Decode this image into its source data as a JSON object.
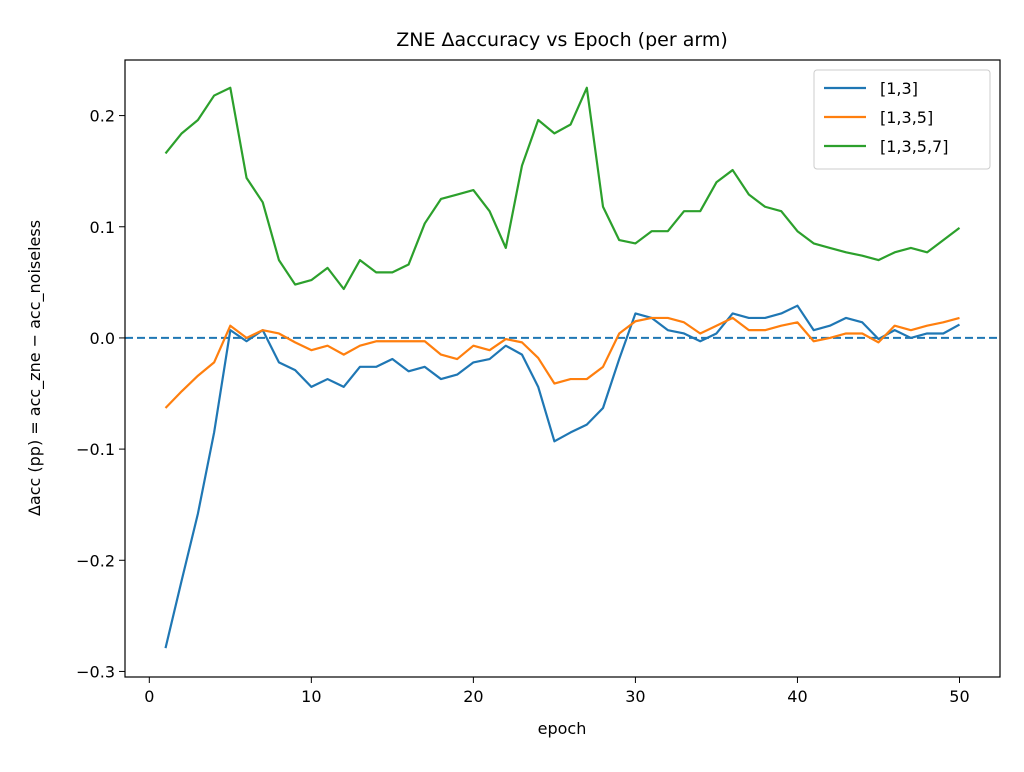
{
  "chart_data": {
    "type": "line",
    "title": "ZNE Δaccuracy vs Epoch (per arm)",
    "xlabel": "epoch",
    "ylabel": "Δacc (pp) = acc_zne − acc_noiseless",
    "xlim": [
      -1.5,
      52.5
    ],
    "ylim": [
      -0.305,
      0.25
    ],
    "xticks": [
      0,
      10,
      20,
      30,
      40,
      50
    ],
    "xtick_labels": [
      "0",
      "10",
      "20",
      "30",
      "40",
      "50"
    ],
    "yticks": [
      -0.3,
      -0.2,
      -0.1,
      0.0,
      0.1,
      0.2
    ],
    "ytick_labels": [
      "−0.3",
      "−0.2",
      "−0.1",
      "0.0",
      "0.1",
      "0.2"
    ],
    "grid": false,
    "legend_position": "top-right",
    "reference_line": {
      "y": 0.0,
      "style": "dashed",
      "color": "#1f77b4"
    },
    "x": [
      1,
      2,
      3,
      4,
      5,
      6,
      7,
      8,
      9,
      10,
      11,
      12,
      13,
      14,
      15,
      16,
      17,
      18,
      19,
      20,
      21,
      22,
      23,
      24,
      25,
      26,
      27,
      28,
      29,
      30,
      31,
      32,
      33,
      34,
      35,
      36,
      37,
      38,
      39,
      40,
      41,
      42,
      43,
      44,
      45,
      46,
      47,
      48,
      49,
      50
    ],
    "series": [
      {
        "name": "[1,3]",
        "color": "#1f77b4",
        "values": [
          -0.279,
          -0.218,
          -0.158,
          -0.085,
          0.007,
          -0.003,
          0.007,
          -0.022,
          -0.029,
          -0.044,
          -0.037,
          -0.044,
          -0.026,
          -0.026,
          -0.019,
          -0.03,
          -0.026,
          -0.037,
          -0.033,
          -0.022,
          -0.019,
          -0.007,
          -0.015,
          -0.044,
          -0.093,
          -0.085,
          -0.078,
          -0.063,
          -0.019,
          0.022,
          0.018,
          0.007,
          0.004,
          -0.003,
          0.004,
          0.022,
          0.018,
          0.018,
          0.022,
          0.029,
          0.007,
          0.011,
          0.018,
          0.014,
          -0.001,
          0.007,
          0.0,
          0.004,
          0.004,
          0.012
        ]
      },
      {
        "name": "[1,3,5]",
        "color": "#ff7f0e",
        "values": [
          -0.063,
          -0.048,
          -0.034,
          -0.022,
          0.011,
          0.0,
          0.007,
          0.004,
          -0.004,
          -0.011,
          -0.007,
          -0.015,
          -0.007,
          -0.003,
          -0.003,
          -0.003,
          -0.003,
          -0.015,
          -0.019,
          -0.007,
          -0.011,
          -0.001,
          -0.004,
          -0.018,
          -0.041,
          -0.037,
          -0.037,
          -0.026,
          0.004,
          0.015,
          0.018,
          0.018,
          0.014,
          0.004,
          0.011,
          0.018,
          0.007,
          0.007,
          0.011,
          0.014,
          -0.003,
          0.0,
          0.004,
          0.004,
          -0.004,
          0.011,
          0.007,
          0.011,
          0.014,
          0.018
        ]
      },
      {
        "name": "[1,3,5,7]",
        "color": "#2ca02c",
        "values": [
          0.166,
          0.184,
          0.196,
          0.218,
          0.225,
          0.144,
          0.122,
          0.07,
          0.048,
          0.052,
          0.063,
          0.044,
          0.07,
          0.059,
          0.059,
          0.066,
          0.103,
          0.125,
          0.129,
          0.133,
          0.114,
          0.081,
          0.155,
          0.196,
          0.184,
          0.192,
          0.225,
          0.118,
          0.088,
          0.085,
          0.096,
          0.096,
          0.114,
          0.114,
          0.14,
          0.151,
          0.129,
          0.118,
          0.114,
          0.096,
          0.085,
          0.081,
          0.077,
          0.074,
          0.07,
          0.077,
          0.081,
          0.077,
          0.088,
          0.099
        ]
      }
    ]
  }
}
